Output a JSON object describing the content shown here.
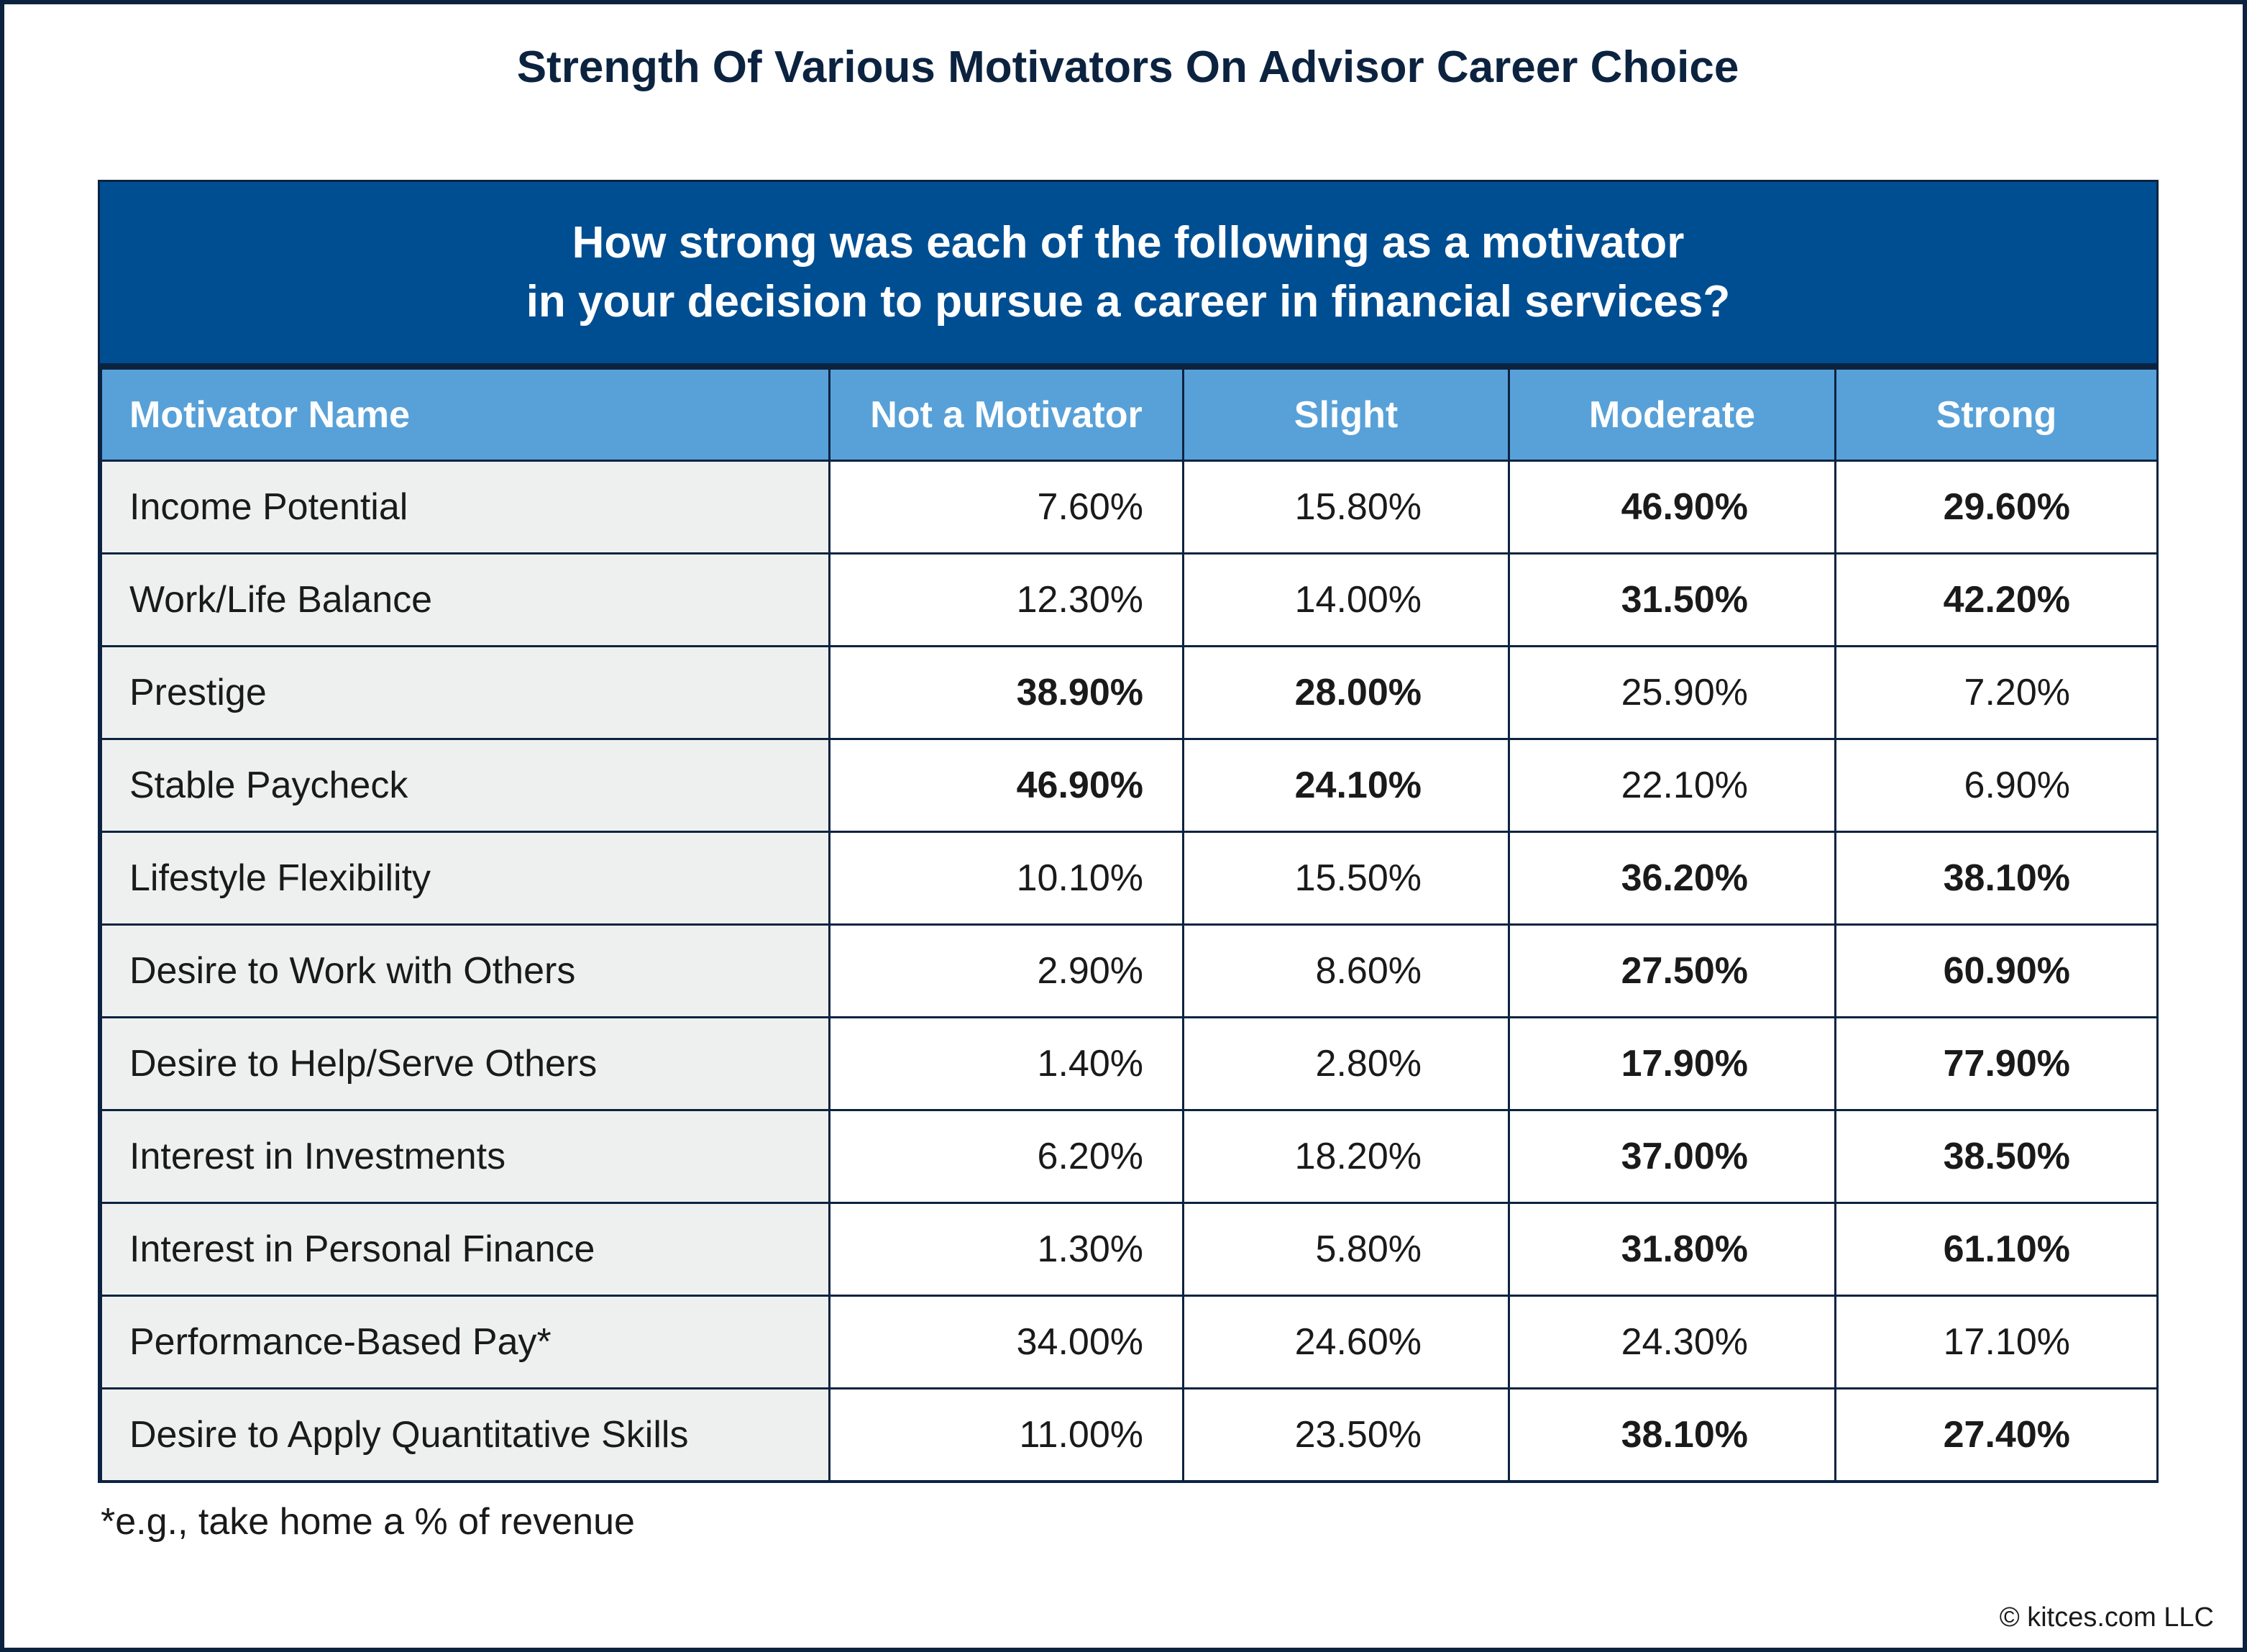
{
  "title": "Strength Of Various Motivators On Advisor Career Choice",
  "banner": {
    "line1": "How strong was each of the following as a motivator",
    "line2": "in your decision to pursue a career in financial services?"
  },
  "footnote": "*e.g., take home a % of revenue",
  "copyright": "© kitces.com LLC",
  "colors": {
    "banner": "#004e92",
    "header": "#58a1d8",
    "border": "#0c2340",
    "name_cell": "#eef0f0"
  },
  "chart_data": {
    "type": "table",
    "columns": [
      "Motivator Name",
      "Not a Motivator",
      "Slight",
      "Moderate",
      "Strong"
    ],
    "rows": [
      {
        "name": "Income Potential",
        "values": [
          "7.60%",
          "15.80%",
          "46.90%",
          "29.60%"
        ],
        "bold": [
          false,
          false,
          true,
          true
        ]
      },
      {
        "name": "Work/Life Balance",
        "values": [
          "12.30%",
          "14.00%",
          "31.50%",
          "42.20%"
        ],
        "bold": [
          false,
          false,
          true,
          true
        ]
      },
      {
        "name": "Prestige",
        "values": [
          "38.90%",
          "28.00%",
          "25.90%",
          "7.20%"
        ],
        "bold": [
          true,
          true,
          false,
          false
        ]
      },
      {
        "name": "Stable Paycheck",
        "values": [
          "46.90%",
          "24.10%",
          "22.10%",
          "6.90%"
        ],
        "bold": [
          true,
          true,
          false,
          false
        ]
      },
      {
        "name": "Lifestyle Flexibility",
        "values": [
          "10.10%",
          "15.50%",
          "36.20%",
          "38.10%"
        ],
        "bold": [
          false,
          false,
          true,
          true
        ]
      },
      {
        "name": "Desire to Work with Others",
        "values": [
          "2.90%",
          "8.60%",
          "27.50%",
          "60.90%"
        ],
        "bold": [
          false,
          false,
          true,
          true
        ]
      },
      {
        "name": "Desire to Help/Serve Others",
        "values": [
          "1.40%",
          "2.80%",
          "17.90%",
          "77.90%"
        ],
        "bold": [
          false,
          false,
          true,
          true
        ]
      },
      {
        "name": "Interest in Investments",
        "values": [
          "6.20%",
          "18.20%",
          "37.00%",
          "38.50%"
        ],
        "bold": [
          false,
          false,
          true,
          true
        ]
      },
      {
        "name": "Interest in Personal Finance",
        "values": [
          "1.30%",
          "5.80%",
          "31.80%",
          "61.10%"
        ],
        "bold": [
          false,
          false,
          true,
          true
        ]
      },
      {
        "name": "Performance-Based Pay*",
        "values": [
          "34.00%",
          "24.60%",
          "24.30%",
          "17.10%"
        ],
        "bold": [
          false,
          false,
          false,
          false
        ]
      },
      {
        "name": "Desire to Apply Quantitative Skills",
        "values": [
          "11.00%",
          "23.50%",
          "38.10%",
          "27.40%"
        ],
        "bold": [
          false,
          false,
          true,
          true
        ]
      }
    ]
  }
}
